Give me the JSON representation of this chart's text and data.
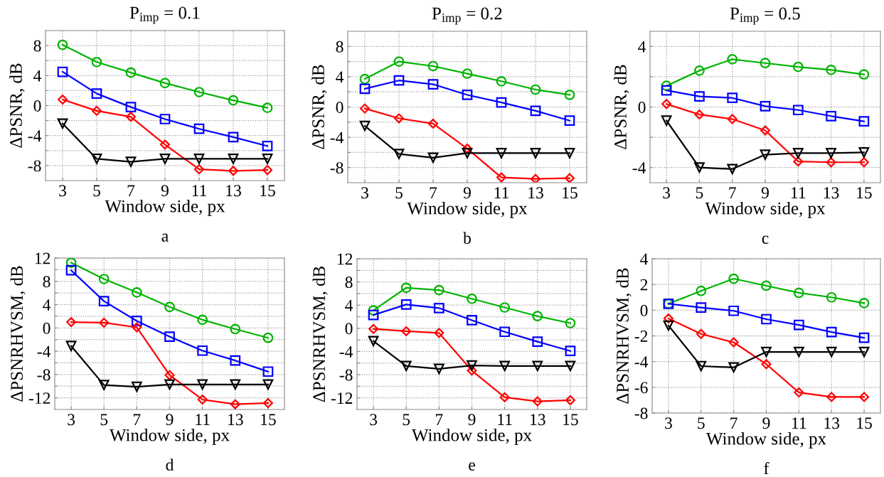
{
  "chart_data": [
    {
      "type": "line",
      "title": "P$_{imp}$ = 0.1",
      "xlabel": "Window side, px",
      "ylabel": "ΔPSNR, dB",
      "annotations": [
        "a"
      ],
      "x": [
        3,
        5,
        7,
        9,
        11,
        13,
        15
      ],
      "xlim": [
        2,
        16
      ],
      "xticks": [
        3,
        5,
        7,
        9,
        11,
        13,
        15
      ],
      "ylim": [
        -10,
        10
      ],
      "yticks": [
        -8,
        {
          "value": -6,
          "label": null
        },
        -4,
        {
          "value": -2,
          "label": null
        },
        0,
        {
          "value": 2,
          "label": null
        },
        4,
        {
          "value": 6,
          "label": null
        },
        8
      ],
      "grid": true,
      "line_style": "solid",
      "series": [
        {
          "color": "#00b400",
          "marker": "circle",
          "values": [
            8.1,
            5.8,
            4.4,
            3.0,
            1.8,
            0.7,
            -0.3
          ]
        },
        {
          "color": "#0000ff",
          "marker": "square",
          "values": [
            4.5,
            1.6,
            -0.2,
            -1.8,
            -3.1,
            -4.2,
            -5.4
          ]
        },
        {
          "color": "#ff0000",
          "marker": "diamond",
          "values": [
            0.8,
            -0.7,
            -1.5,
            -5.2,
            -8.5,
            -8.7,
            -8.6
          ]
        },
        {
          "color": "#000000",
          "marker": "triangle",
          "values": [
            -2.4,
            -7.1,
            -7.5,
            -7.1,
            -7.1,
            -7.1,
            -7.1
          ]
        }
      ]
    },
    {
      "type": "line",
      "title": "P$_{imp}$ = 0.2",
      "xlabel": "Window side, px",
      "ylabel": "ΔPSNR, dB",
      "annotations": [
        "b"
      ],
      "x": [
        3,
        5,
        7,
        9,
        11,
        13,
        15
      ],
      "xlim": [
        2,
        16
      ],
      "xticks": [
        3,
        5,
        7,
        9,
        11,
        13,
        15
      ],
      "ylim": [
        -10,
        10
      ],
      "yticks": [
        -8,
        {
          "value": -6,
          "label": null
        },
        -4,
        {
          "value": -2,
          "label": null
        },
        0,
        {
          "value": 2,
          "label": null
        },
        4,
        {
          "value": 6,
          "label": null
        },
        8
      ],
      "grid": true,
      "line_style": "solid",
      "series": [
        {
          "color": "#00b400",
          "marker": "circle",
          "values": [
            3.7,
            6.0,
            5.4,
            4.4,
            3.4,
            2.3,
            1.6
          ]
        },
        {
          "color": "#0000ff",
          "marker": "square",
          "values": [
            2.4,
            3.5,
            3.0,
            1.6,
            0.6,
            -0.5,
            -1.8
          ]
        },
        {
          "color": "#ff0000",
          "marker": "diamond",
          "values": [
            -0.2,
            -1.5,
            -2.2,
            -5.5,
            -9.3,
            -9.5,
            -9.4
          ]
        },
        {
          "color": "#000000",
          "marker": "triangle",
          "values": [
            -2.5,
            -6.2,
            -6.7,
            -6.1,
            -6.1,
            -6.1,
            -6.1
          ]
        }
      ]
    },
    {
      "type": "line",
      "title": "P$_{imp}$ = 0.5",
      "xlabel": "Window side, px",
      "ylabel": "ΔPSNR, dB",
      "annotations": [
        "c"
      ],
      "x": [
        3,
        5,
        7,
        9,
        11,
        13,
        15
      ],
      "xlim": [
        2,
        16
      ],
      "xticks": [
        3,
        5,
        7,
        9,
        11,
        13,
        15
      ],
      "ylim": [
        -5,
        5
      ],
      "yticks": [
        -4,
        {
          "value": -2,
          "label": null
        },
        0,
        {
          "value": 2,
          "label": null
        },
        4
      ],
      "grid": true,
      "line_style": "solid",
      "series": [
        {
          "color": "#00b400",
          "marker": "circle",
          "values": [
            1.4,
            2.4,
            3.15,
            2.9,
            2.65,
            2.45,
            2.15
          ]
        },
        {
          "color": "#0000ff",
          "marker": "square",
          "values": [
            1.1,
            0.7,
            0.6,
            0.05,
            -0.2,
            -0.6,
            -0.95
          ]
        },
        {
          "color": "#ff0000",
          "marker": "diamond",
          "values": [
            0.2,
            -0.5,
            -0.8,
            -1.55,
            -3.6,
            -3.65,
            -3.65
          ]
        },
        {
          "color": "#000000",
          "marker": "triangle",
          "values": [
            -0.9,
            -4.0,
            -4.1,
            -3.15,
            -3.05,
            -3.05,
            -3.0
          ]
        }
      ]
    },
    {
      "type": "line",
      "xlabel": "Window side, px",
      "ylabel": "ΔPSNRHVSM, dB",
      "annotations": [
        "d"
      ],
      "x": [
        3,
        5,
        7,
        9,
        11,
        13,
        15
      ],
      "xlim": [
        2,
        16
      ],
      "xticks": [
        3,
        5,
        7,
        9,
        11,
        13,
        15
      ],
      "ylim": [
        -14,
        12
      ],
      "yticks": [
        -12,
        {
          "value": -10,
          "label": null
        },
        -8,
        {
          "value": -6,
          "label": null
        },
        -4,
        {
          "value": -2,
          "label": null
        },
        0,
        {
          "value": 2,
          "label": null
        },
        4,
        {
          "value": 6,
          "label": null
        },
        8,
        {
          "value": 10,
          "label": null
        },
        12
      ],
      "grid": true,
      "line_style": "solid",
      "series": [
        {
          "color": "#00b400",
          "marker": "circle",
          "values": [
            11.2,
            8.4,
            6.1,
            3.6,
            1.4,
            -0.2,
            -1.7
          ]
        },
        {
          "color": "#0000ff",
          "marker": "square",
          "values": [
            9.9,
            4.6,
            1.2,
            -1.5,
            -3.9,
            -5.6,
            -7.5
          ]
        },
        {
          "color": "#ff0000",
          "marker": "diamond",
          "values": [
            1.0,
            0.9,
            0.1,
            -8.1,
            -12.3,
            -13.1,
            -12.9
          ]
        },
        {
          "color": "#000000",
          "marker": "triangle",
          "values": [
            -3.1,
            -9.8,
            -10.1,
            -9.7,
            -9.7,
            -9.7,
            -9.7
          ]
        }
      ]
    },
    {
      "type": "line",
      "xlabel": "Window side, px",
      "ylabel": "ΔPSNRHVSM, dB",
      "annotations": [
        "e"
      ],
      "x": [
        3,
        5,
        7,
        9,
        11,
        13,
        15
      ],
      "xlim": [
        2,
        16
      ],
      "xticks": [
        3,
        5,
        7,
        9,
        11,
        13,
        15
      ],
      "ylim": [
        -14,
        12
      ],
      "yticks": [
        -12,
        {
          "value": -10,
          "label": null
        },
        -8,
        {
          "value": -6,
          "label": null
        },
        -4,
        {
          "value": -2,
          "label": null
        },
        0,
        {
          "value": 2,
          "label": null
        },
        4,
        {
          "value": 6,
          "label": null
        },
        8,
        {
          "value": 10,
          "label": null
        },
        12
      ],
      "grid": true,
      "line_style": "solid",
      "series": [
        {
          "color": "#00b400",
          "marker": "circle",
          "values": [
            3.1,
            7.0,
            6.6,
            5.1,
            3.6,
            2.1,
            0.9
          ]
        },
        {
          "color": "#0000ff",
          "marker": "square",
          "values": [
            2.3,
            4.1,
            3.5,
            1.4,
            -0.6,
            -2.3,
            -3.9
          ]
        },
        {
          "color": "#ff0000",
          "marker": "diamond",
          "values": [
            -0.1,
            -0.5,
            -0.8,
            -7.3,
            -11.9,
            -12.6,
            -12.4
          ]
        },
        {
          "color": "#000000",
          "marker": "triangle",
          "values": [
            -2.2,
            -6.5,
            -7.0,
            -6.4,
            -6.5,
            -6.5,
            -6.5
          ]
        }
      ]
    },
    {
      "type": "line",
      "xlabel": "Window side, px",
      "ylabel": "ΔPSNRHVSM, dB",
      "annotations": [
        "f"
      ],
      "x": [
        3,
        5,
        7,
        9,
        11,
        13,
        15
      ],
      "xlim": [
        2,
        16
      ],
      "xticks": [
        3,
        5,
        7,
        9,
        11,
        13,
        15
      ],
      "ylim": [
        -8,
        4
      ],
      "yticks": [
        -8,
        -6,
        -4,
        -2,
        0,
        2,
        4
      ],
      "grid": true,
      "line_style": "solid",
      "series": [
        {
          "color": "#00b400",
          "marker": "circle",
          "values": [
            0.5,
            1.5,
            2.45,
            1.9,
            1.35,
            1.0,
            0.55
          ]
        },
        {
          "color": "#0000ff",
          "marker": "square",
          "values": [
            0.5,
            0.2,
            -0.05,
            -0.7,
            -1.15,
            -1.7,
            -2.15
          ]
        },
        {
          "color": "#ff0000",
          "marker": "diamond",
          "values": [
            -0.65,
            -1.85,
            -2.5,
            -4.2,
            -6.4,
            -6.75,
            -6.75
          ]
        },
        {
          "color": "#000000",
          "marker": "triangle",
          "values": [
            -1.2,
            -4.35,
            -4.45,
            -3.25,
            -3.25,
            -3.25,
            -3.25
          ]
        }
      ]
    }
  ]
}
